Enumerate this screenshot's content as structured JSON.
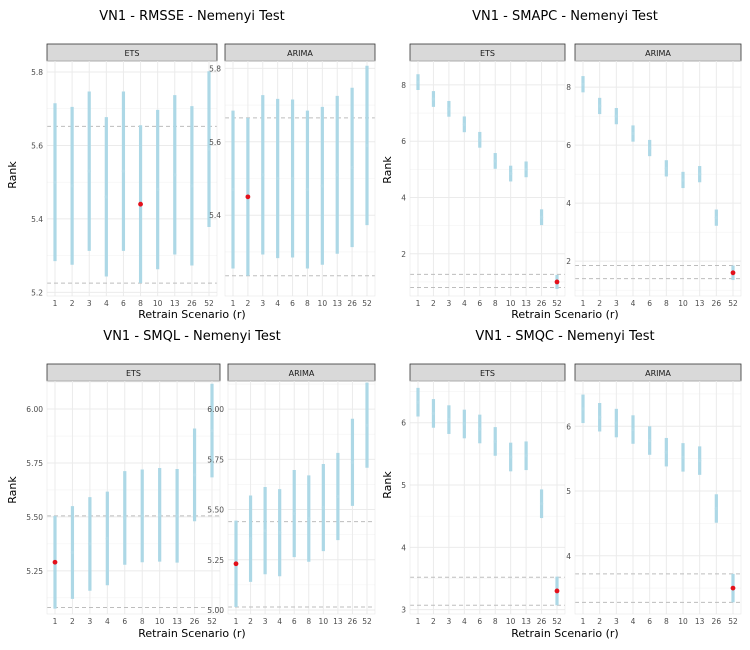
{
  "chart_data": [
    {
      "type": "errorbar",
      "title": "VN1 - RMSSE - Nemenyi Test",
      "xlabel": "Retrain Scenario (r)",
      "ylabel": "Rank",
      "categories": [
        "1",
        "2",
        "3",
        "4",
        "6",
        "8",
        "10",
        "13",
        "26",
        "52"
      ],
      "panels": [
        {
          "name": "ETS",
          "ylim": [
            5.19,
            5.83
          ],
          "yticks": [
            "5.2",
            "5.4",
            "5.6",
            "5.8"
          ],
          "ytick_values": [
            5.2,
            5.4,
            5.6,
            5.8
          ],
          "center": [
            5.5,
            5.49,
            5.53,
            5.46,
            5.53,
            5.44,
            5.48,
            5.52,
            5.49,
            5.59
          ],
          "half_width": [
            0.215,
            0.215,
            0.217,
            0.217,
            0.217,
            0.215,
            0.217,
            0.217,
            0.217,
            0.212
          ],
          "best_index": 5,
          "ref_lines": [
            5.225,
            5.652
          ]
        },
        {
          "name": "ARIMA",
          "ylim": [
            5.18,
            5.82
          ],
          "yticks": [
            "5.4",
            "5.6",
            "5.8"
          ],
          "ytick_values": [
            5.4,
            5.6,
            5.8
          ],
          "center": [
            5.47,
            5.45,
            5.51,
            5.5,
            5.5,
            5.47,
            5.48,
            5.51,
            5.53,
            5.59
          ],
          "half_width": [
            0.215,
            0.215,
            0.217,
            0.217,
            0.215,
            0.215,
            0.215,
            0.215,
            0.217,
            0.217
          ],
          "best_index": 1,
          "ref_lines": [
            5.235,
            5.665
          ]
        }
      ]
    },
    {
      "type": "errorbar",
      "title": "VN1 - SMAPC - Nemenyi Test",
      "xlabel": "Retrain Scenario (r)",
      "ylabel": "Rank",
      "categories": [
        "1",
        "2",
        "3",
        "4",
        "6",
        "8",
        "10",
        "13",
        "26",
        "52"
      ],
      "panels": [
        {
          "name": "ETS",
          "ylim": [
            0.5,
            8.85
          ],
          "yticks": [
            "2",
            "4",
            "6",
            "8"
          ],
          "ytick_values": [
            2,
            4,
            6,
            8
          ],
          "center": [
            8.1,
            7.5,
            7.15,
            6.6,
            6.05,
            5.3,
            4.85,
            5.0,
            3.3,
            1.0
          ],
          "half_width": [
            0.28,
            0.28,
            0.28,
            0.28,
            0.28,
            0.28,
            0.28,
            0.28,
            0.28,
            0.25
          ],
          "best_index": 9,
          "ref_lines": [
            0.8,
            1.27
          ]
        },
        {
          "name": "ARIMA",
          "ylim": [
            0.8,
            8.9
          ],
          "yticks": [
            "2",
            "4",
            "6",
            "8"
          ],
          "ytick_values": [
            2,
            4,
            6,
            8
          ],
          "center": [
            8.1,
            7.35,
            7.0,
            6.4,
            5.9,
            5.2,
            4.8,
            5.0,
            3.5,
            1.6
          ],
          "half_width": [
            0.28,
            0.28,
            0.28,
            0.28,
            0.28,
            0.28,
            0.28,
            0.28,
            0.28,
            0.25
          ],
          "best_index": 9,
          "ref_lines": [
            1.4,
            1.85
          ]
        }
      ]
    },
    {
      "type": "errorbar",
      "title": "VN1 - SMQL - Nemenyi Test",
      "xlabel": "Retrain Scenario (r)",
      "ylabel": "Rank",
      "categories": [
        "1",
        "2",
        "3",
        "4",
        "6",
        "8",
        "10",
        "13",
        "26",
        "52"
      ],
      "panels": [
        {
          "name": "ETS",
          "ylim": [
            5.05,
            6.13
          ],
          "yticks": [
            "5.25",
            "5.50",
            "5.75",
            "6.00"
          ],
          "ytick_values": [
            5.25,
            5.5,
            5.75,
            6.0
          ],
          "center": [
            5.29,
            5.335,
            5.375,
            5.4,
            5.495,
            5.505,
            5.51,
            5.505,
            5.695,
            5.9
          ],
          "half_width": [
            0.215,
            0.215,
            0.217,
            0.217,
            0.217,
            0.215,
            0.217,
            0.217,
            0.215,
            0.217
          ],
          "best_index": 0,
          "ref_lines": [
            5.08,
            5.505
          ]
        },
        {
          "name": "ARIMA",
          "ylim": [
            4.98,
            6.14
          ],
          "yticks": [
            "5.00",
            "5.25",
            "5.50",
            "5.75",
            "6.00"
          ],
          "ytick_values": [
            5.0,
            5.25,
            5.5,
            5.75,
            6.0
          ],
          "center": [
            5.23,
            5.355,
            5.395,
            5.385,
            5.48,
            5.455,
            5.51,
            5.565,
            5.735,
            5.92
          ],
          "half_width": [
            0.215,
            0.215,
            0.217,
            0.217,
            0.217,
            0.215,
            0.217,
            0.217,
            0.217,
            0.212
          ],
          "best_index": 0,
          "ref_lines": [
            5.015,
            5.44
          ]
        }
      ]
    },
    {
      "type": "errorbar",
      "title": "VN1 - SMQC - Nemenyi Test",
      "xlabel": "Retrain Scenario (r)",
      "ylabel": "Rank",
      "categories": [
        "1",
        "2",
        "3",
        "4",
        "6",
        "8",
        "10",
        "13",
        "26",
        "52"
      ],
      "panels": [
        {
          "name": "ETS",
          "ylim": [
            2.93,
            6.67
          ],
          "yticks": [
            "3",
            "4",
            "5",
            "6"
          ],
          "ytick_values": [
            3,
            4,
            5,
            6
          ],
          "center": [
            6.33,
            6.15,
            6.05,
            5.98,
            5.9,
            5.7,
            5.45,
            5.47,
            4.7,
            3.3
          ],
          "half_width": [
            0.23,
            0.23,
            0.23,
            0.23,
            0.23,
            0.23,
            0.23,
            0.23,
            0.23,
            0.23
          ],
          "best_index": 9,
          "ref_lines": [
            3.07,
            3.52
          ]
        },
        {
          "name": "ARIMA",
          "ylim": [
            3.1,
            6.7
          ],
          "yticks": [
            "4",
            "5",
            "6"
          ],
          "ytick_values": [
            4,
            5,
            6
          ],
          "center": [
            6.27,
            6.14,
            6.05,
            5.95,
            5.78,
            5.6,
            5.52,
            5.47,
            4.73,
            3.5
          ],
          "half_width": [
            0.22,
            0.22,
            0.22,
            0.22,
            0.22,
            0.22,
            0.22,
            0.22,
            0.22,
            0.22
          ],
          "best_index": 9,
          "ref_lines": [
            3.28,
            3.72
          ]
        }
      ]
    }
  ],
  "colors": {
    "interval": "#add8e6",
    "center": "#b3dbe8",
    "best": "#e3111b",
    "strip_fill": "#d9d9d9",
    "strip_border": "#333333",
    "grid": "#ebebeb",
    "ref_line": "#bdbdbd",
    "text": "#4d4d4d"
  }
}
